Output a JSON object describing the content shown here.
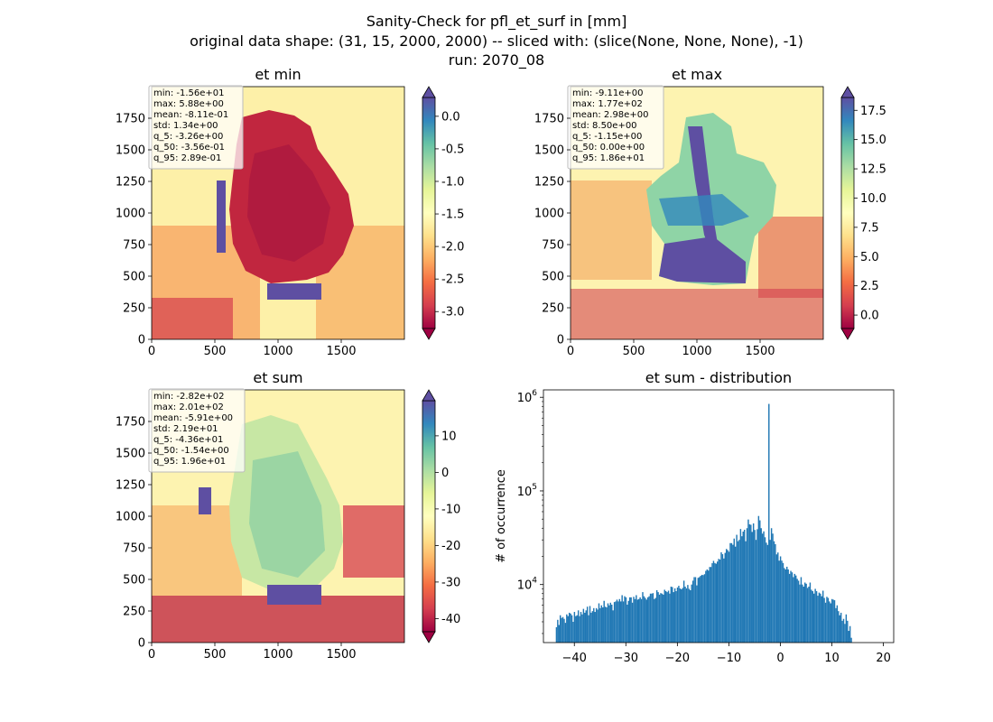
{
  "figure": {
    "title_lines": [
      "Sanity-Check for pfl_et_surf in [mm]",
      "original data shape: (31, 15, 2000, 2000) -- sliced with: (slice(None, None, None), -1)",
      "run: 2070_08"
    ]
  },
  "colors": {
    "spectral": [
      "#9e0142",
      "#d53e4f",
      "#f46d43",
      "#fdae61",
      "#fee08b",
      "#ffffbf",
      "#e6f598",
      "#abdda4",
      "#66c2a5",
      "#3288bd",
      "#5e4fa2"
    ],
    "hist_bar": "#1f77b4",
    "stats_box_border": "#bbbbbb"
  },
  "chart_data": [
    {
      "type": "heatmap",
      "title": "et min",
      "x_ticks": [
        "0",
        "500",
        "1000",
        "1500"
      ],
      "y_ticks": [
        "0",
        "250",
        "500",
        "750",
        "1000",
        "1250",
        "1500",
        "1750"
      ],
      "xlim": [
        0,
        2000
      ],
      "ylim": [
        0,
        2000
      ],
      "colorbar": {
        "min": -3.26,
        "max": 0.289,
        "ticks": [
          "-3.0",
          "-2.5",
          "-2.0",
          "-1.5",
          "-1.0",
          "-0.5",
          "0.0"
        ],
        "tick_values": [
          -3.0,
          -2.5,
          -2.0,
          -1.5,
          -1.0,
          -0.5,
          0.0
        ],
        "extend": "both"
      },
      "stats": [
        "min: -1.56e+01",
        "max: 5.88e+00",
        "mean: -8.11e-01",
        "std: 1.34e+00",
        "q_5: -3.26e+00",
        "q_50: -3.56e-01",
        "q_95: 2.89e-01"
      ]
    },
    {
      "type": "heatmap",
      "title": "et max",
      "x_ticks": [
        "0",
        "500",
        "1000",
        "1500"
      ],
      "y_ticks": [
        "0",
        "250",
        "500",
        "750",
        "1000",
        "1250",
        "1500",
        "1750"
      ],
      "xlim": [
        0,
        2000
      ],
      "ylim": [
        0,
        2000
      ],
      "colorbar": {
        "min": -1.15,
        "max": 18.6,
        "ticks": [
          "0.0",
          "2.5",
          "5.0",
          "7.5",
          "10.0",
          "12.5",
          "15.0",
          "17.5"
        ],
        "tick_values": [
          0,
          2.5,
          5,
          7.5,
          10,
          12.5,
          15,
          17.5
        ],
        "extend": "both"
      },
      "stats": [
        "min: -9.11e+00",
        "max: 1.77e+02",
        "mean: 2.98e+00",
        "std: 8.50e+00",
        "q_5: -1.15e+00",
        "q_50: 0.00e+00",
        "q_95: 1.86e+01"
      ]
    },
    {
      "type": "heatmap",
      "title": "et sum",
      "x_ticks": [
        "0",
        "500",
        "1000",
        "1500"
      ],
      "y_ticks": [
        "0",
        "250",
        "500",
        "750",
        "1000",
        "1250",
        "1500",
        "1750"
      ],
      "xlim": [
        0,
        2000
      ],
      "ylim": [
        0,
        2000
      ],
      "colorbar": {
        "min": -43.6,
        "max": 19.6,
        "ticks": [
          "-40",
          "-30",
          "-20",
          "-10",
          "0",
          "10"
        ],
        "tick_values": [
          -40,
          -30,
          -20,
          -10,
          0,
          10
        ],
        "extend": "both"
      },
      "stats": [
        "min: -2.82e+02",
        "max: 2.01e+02",
        "mean: -5.91e+00",
        "std: 2.19e+01",
        "q_5: -4.36e+01",
        "q_50: -1.54e+00",
        "q_95: 1.96e+01"
      ]
    },
    {
      "type": "bar",
      "title": "et sum - distribution",
      "ylabel": "# of occurrence",
      "log_y": true,
      "ylim": [
        2400,
        1200000
      ],
      "xlim": [
        -46,
        22
      ],
      "x_ticks": [
        "−40",
        "−30",
        "−20",
        "−10",
        "0",
        "10",
        "20"
      ],
      "x_tick_values": [
        -40,
        -30,
        -20,
        -10,
        0,
        10,
        20
      ],
      "y_ticks": [
        "10^4",
        "10^5",
        "10^6"
      ],
      "y_tick_values": [
        10000,
        100000,
        1000000
      ],
      "hist": {
        "bin_start": -43.6,
        "bin_width": 0.25,
        "values": [
          3500,
          4200,
          3700,
          4700,
          4400,
          4500,
          4300,
          3900,
          4800,
          4600,
          5000,
          4900,
          4700,
          4000,
          5100,
          4600,
          4700,
          5300,
          4600,
          5100,
          4800,
          5500,
          5000,
          5300,
          5800,
          4700,
          5900,
          5000,
          5200,
          5600,
          5100,
          5600,
          5400,
          6300,
          5600,
          6000,
          5700,
          6700,
          5800,
          5700,
          6300,
          6000,
          6400,
          6100,
          5300,
          6500,
          6600,
          6900,
          6600,
          7000,
          6600,
          7700,
          6600,
          7500,
          7300,
          6100,
          6700,
          7300,
          7300,
          6400,
          7400,
          7000,
          7700,
          6900,
          7000,
          7300,
          7000,
          8300,
          7500,
          7200,
          6900,
          7300,
          7500,
          8000,
          8000,
          8100,
          7000,
          7200,
          8700,
          8300,
          7800,
          8100,
          8000,
          7800,
          8800,
          8500,
          8300,
          8600,
          8000,
          9500,
          9400,
          8300,
          9100,
          8500,
          9300,
          9700,
          9100,
          8900,
          9200,
          11000,
          9500,
          9100,
          9900,
          9000,
          8700,
          10000,
          11000,
          12000,
          12000,
          9800,
          11800,
          12000,
          12400,
          12700,
          12600,
          12900,
          14000,
          14500,
          14100,
          15400,
          15400,
          16900,
          17900,
          17000,
          16700,
          17600,
          18800,
          18500,
          22100,
          21100,
          19000,
          21800,
          24000,
          23300,
          22400,
          27700,
          27700,
          26600,
          31000,
          25400,
          34000,
          29000,
          30000,
          39200,
          32800,
          36800,
          38500,
          29000,
          40000,
          49500,
          44000,
          43500,
          36500,
          45000,
          38300,
          30000,
          39000,
          54000,
          48500,
          40000,
          35000,
          37000,
          32000,
          28000,
          26500,
          850000,
          30000,
          40000,
          35000,
          29000,
          27000,
          21000,
          22000,
          18000,
          20000,
          18000,
          17000,
          15000,
          14500,
          15500,
          14500,
          13000,
          14000,
          13500,
          12000,
          13000,
          12500,
          11500,
          11000,
          10000,
          12000,
          10000,
          9500,
          10500,
          10200,
          9200,
          9500,
          10500,
          8800,
          8500,
          8000,
          9000,
          8500,
          7600,
          8200,
          8000,
          7500,
          8600,
          7200,
          6400,
          7400,
          7200,
          6600,
          6300,
          7000,
          6900,
          6800,
          5600,
          6000,
          5200,
          4700,
          5000,
          4100,
          4300,
          3800,
          4800,
          4100,
          3200,
          3600,
          2700
        ]
      }
    }
  ]
}
